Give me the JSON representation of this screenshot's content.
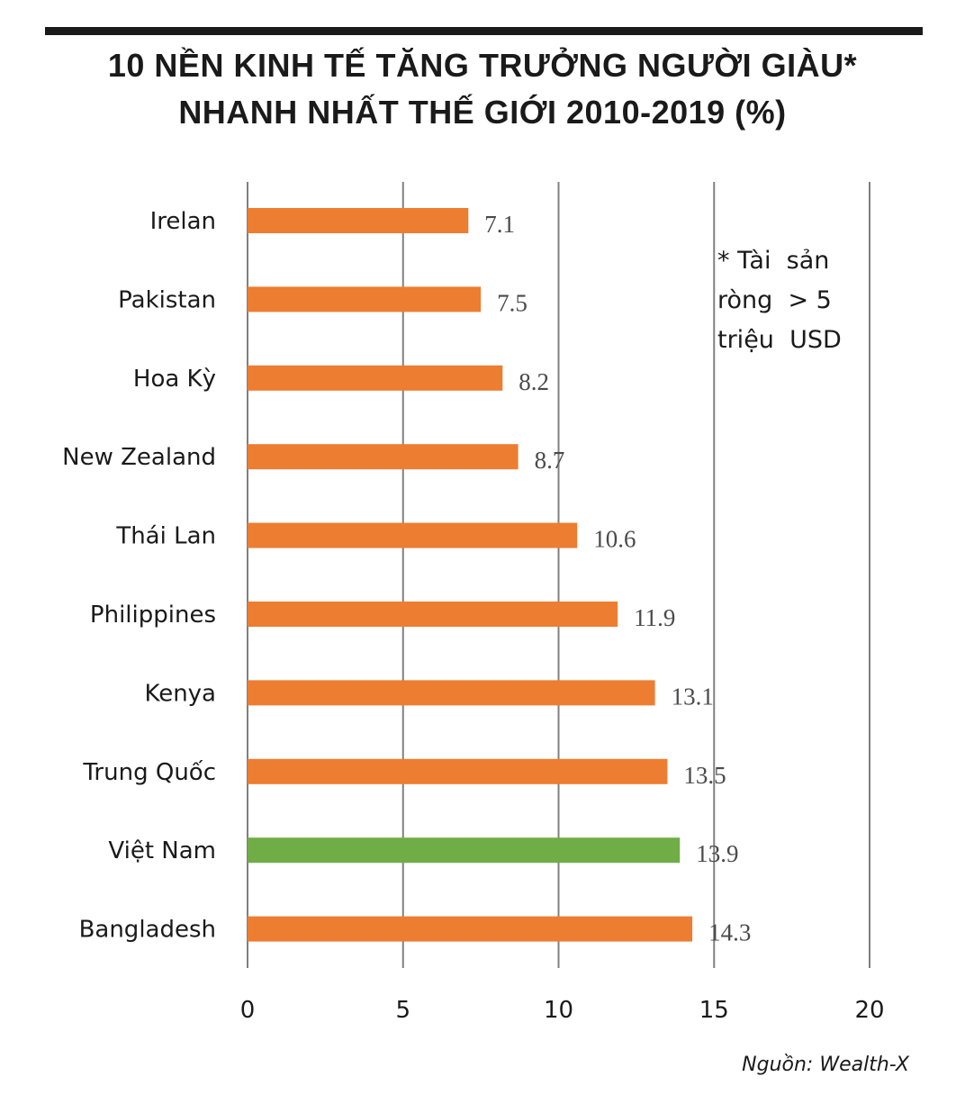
{
  "header": {
    "title_line1": "10 NỀN KINH TẾ TĂNG TRƯỞNG NGƯỜI GIÀU*",
    "title_line2": "NHANH NHẤT THẾ GIỚI 2010-2019 (%)"
  },
  "note": {
    "lines": [
      "* Tài  sản",
      "ròng  > 5",
      "triệu  USD"
    ]
  },
  "source": "Nguồn: Wealth-X",
  "colors": {
    "default_bar": "#ED7D31",
    "highlight_bar": "#70AD47",
    "gridline": "#808080"
  },
  "chart_data": {
    "type": "bar",
    "orientation": "horizontal",
    "title": "10 NỀN KINH TẾ TĂNG TRƯỞNG NGƯỜI GIÀU* NHANH NHẤT THẾ GIỚI 2010-2019 (%)",
    "categories": [
      "Irelan",
      "Pakistan",
      "Hoa Kỳ",
      "New Zealand",
      "Thái Lan",
      "Philippines",
      "Kenya",
      "Trung Quốc",
      "Việt Nam",
      "Bangladesh"
    ],
    "values": [
      7.1,
      7.5,
      8.2,
      8.7,
      10.6,
      11.9,
      13.1,
      13.5,
      13.9,
      14.3
    ],
    "value_labels": [
      "7.1",
      "7.5",
      "8.2",
      "8.7",
      "10.6",
      "11.9",
      "13.1",
      "13.5",
      "13.9",
      "14.3"
    ],
    "highlight": [
      "Việt Nam"
    ],
    "xlabel": "",
    "ylabel": "",
    "xlim": [
      0,
      20
    ],
    "xticks": [
      0,
      5,
      10,
      15,
      20
    ],
    "xtick_labels": [
      "0",
      "5",
      "10",
      "15",
      "20"
    ],
    "grid": true,
    "legend": "none",
    "annotation": "* Tài sản ròng > 5 triệu USD",
    "source": "Nguồn: Wealth-X"
  }
}
